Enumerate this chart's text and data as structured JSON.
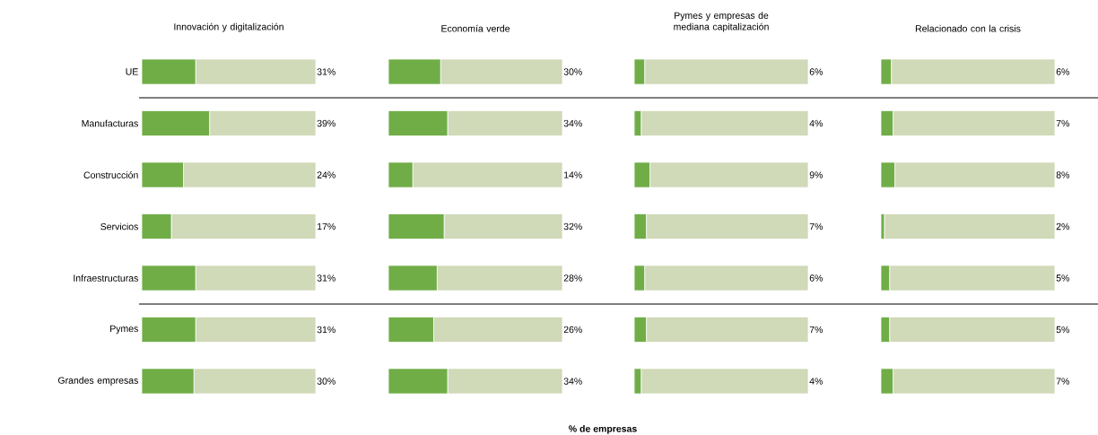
{
  "chart_data": [
    {
      "type": "bar",
      "orientation": "horizontal",
      "stacked": true,
      "title": "Innovación y digitalización",
      "tick_labels": "y",
      "xlim": [
        0,
        100
      ],
      "categories": [
        "UE",
        "Manufacturas",
        "Construcción",
        "Servicios",
        "Infraestructuras",
        "Pymes",
        "Grandes empresas"
      ],
      "series": [
        {
          "color": "#70ad47",
          "values": [
            31,
            39,
            24,
            17,
            31,
            31,
            30
          ],
          "value_labels": [
            "31%",
            "39%",
            "24%",
            "17%",
            "31%",
            "31%",
            "30%"
          ]
        },
        {
          "color": "#d0d9b8",
          "values": [
            69,
            61,
            76,
            83,
            69,
            69,
            70
          ]
        }
      ]
    },
    {
      "type": "bar",
      "orientation": "horizontal",
      "stacked": true,
      "title": "Economía verde",
      "annotations": [
        "% de empresas"
      ],
      "tick_labels": false,
      "xlim": [
        0,
        100
      ],
      "categories": [
        null,
        null,
        null,
        null,
        null,
        null,
        null
      ],
      "series": [
        {
          "color": "#70ad47",
          "values": [
            30,
            34,
            14,
            32,
            28,
            26,
            34
          ],
          "value_labels": [
            "30%",
            "34%",
            "14%",
            "32%",
            "28%",
            "26%",
            "34%"
          ]
        },
        {
          "color": "#d0d9b8",
          "values": [
            70,
            66,
            86,
            68,
            72,
            74,
            66
          ]
        }
      ]
    },
    {
      "type": "bar",
      "orientation": "horizontal",
      "stacked": true,
      "title": "Pymes y empresas de mediana capitalización",
      "tick_labels": false,
      "xlim": [
        0,
        100
      ],
      "categories": [
        null,
        null,
        null,
        null,
        null,
        null,
        null
      ],
      "series": [
        {
          "color": "#70ad47",
          "values": [
            6,
            4,
            9,
            7,
            6,
            7,
            4
          ],
          "value_labels": [
            "6%",
            "4%",
            "9%",
            "7%",
            "6%",
            "7%",
            "4%"
          ]
        },
        {
          "color": "#d0d9b8",
          "values": [
            94,
            96,
            91,
            93,
            94,
            93,
            96
          ]
        }
      ]
    },
    {
      "type": "bar",
      "orientation": "horizontal",
      "stacked": true,
      "title": "Relacionado con la crisis",
      "tick_labels": false,
      "xlim": [
        0,
        100
      ],
      "categories": [
        null,
        null,
        null,
        null,
        null,
        null,
        null
      ],
      "series": [
        {
          "color": "#70ad47",
          "values": [
            6,
            7,
            8,
            2,
            5,
            5,
            7
          ],
          "value_labels": [
            "6%",
            "7%",
            "8%",
            "2%",
            "5%",
            "5%",
            "7%"
          ]
        },
        {
          "color": "#d0d9b8",
          "values": [
            94,
            93,
            92,
            98,
            95,
            95,
            93
          ]
        }
      ]
    }
  ]
}
